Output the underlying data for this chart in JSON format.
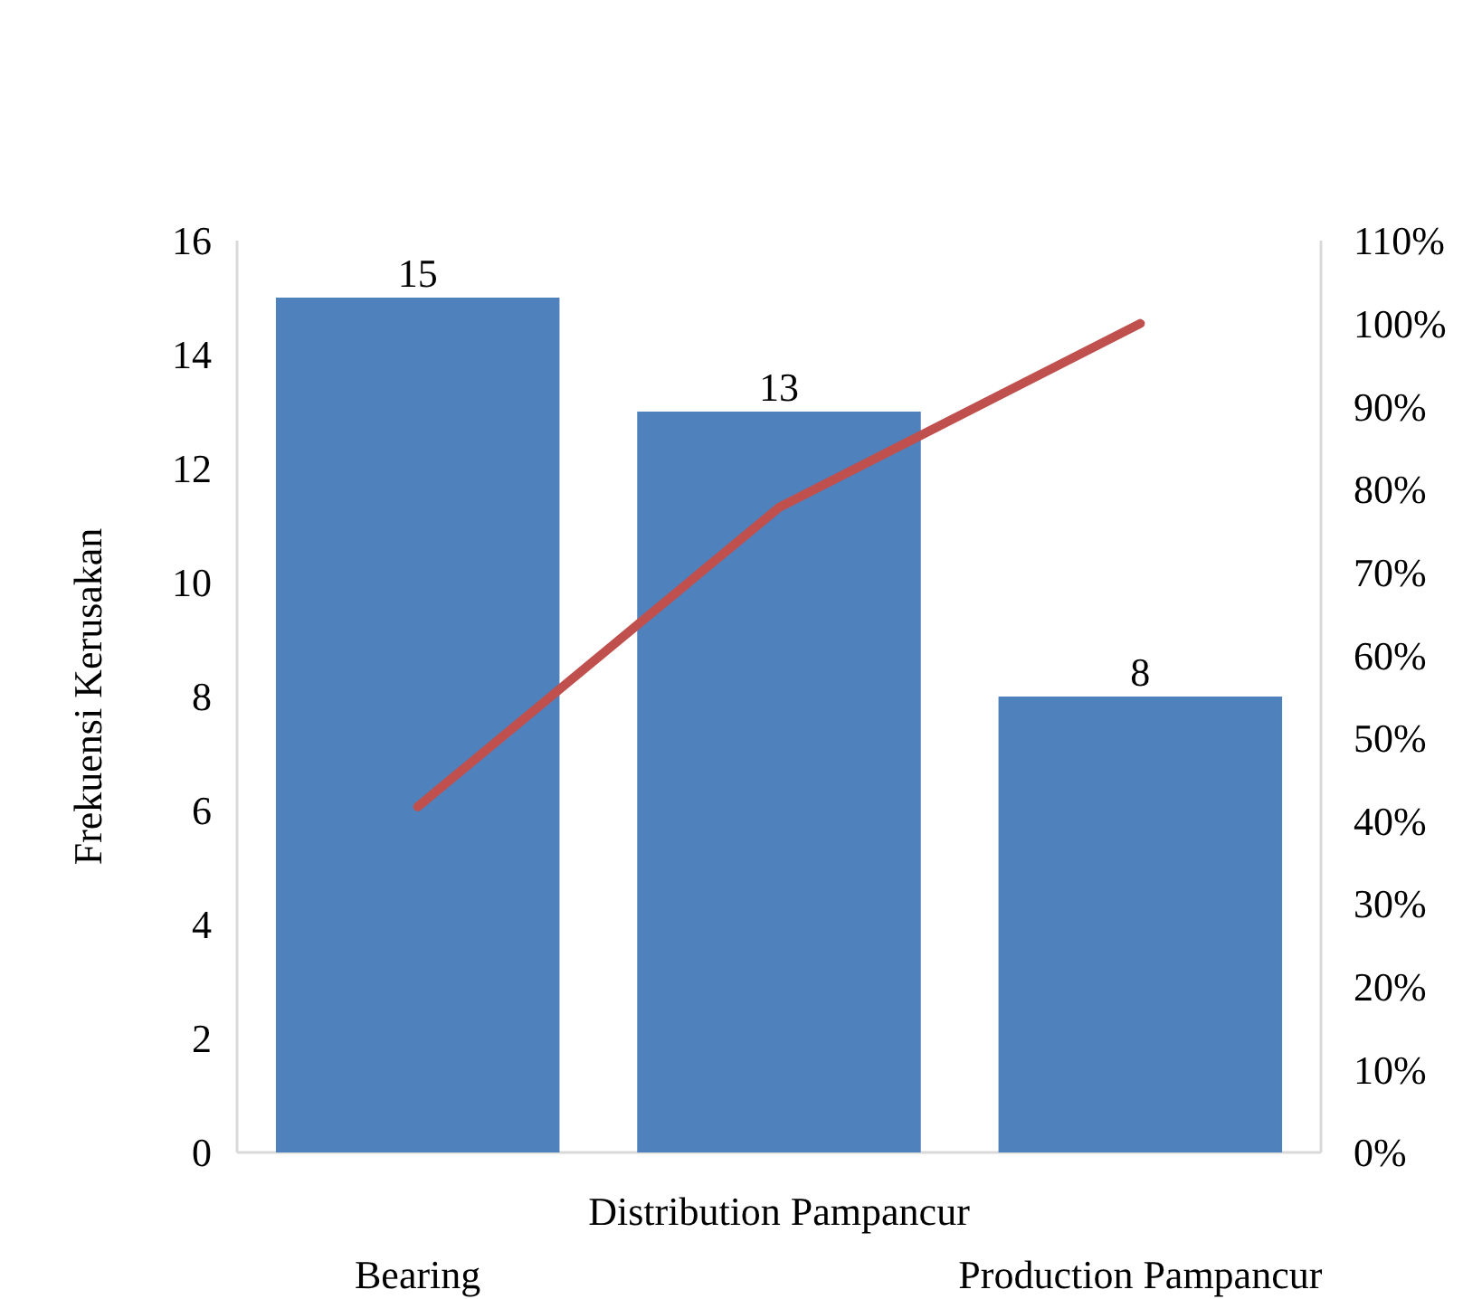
{
  "chart_data": {
    "type": "bar",
    "ylabel": "Frekuensi Kerusakan",
    "categories": [
      "Bearing",
      "Distribution Pampancur",
      "Production Pampancur"
    ],
    "series": [
      {
        "color": "#4f81bd",
        "values": [
          15,
          13,
          8
        ],
        "value_labels": [
          "15",
          "13",
          "8"
        ]
      },
      {
        "type": "line",
        "axis": "y2",
        "color": "#c0504d",
        "values": [
          41.7,
          77.8,
          100
        ]
      }
    ],
    "ylim": [
      0,
      16
    ],
    "yticks": [
      0,
      2,
      4,
      6,
      8,
      10,
      12,
      14,
      16
    ],
    "y2lim": [
      0,
      110
    ],
    "y2ticks": [
      {
        "value": 0,
        "label": "0%"
      },
      {
        "value": 10,
        "label": "10%"
      },
      {
        "value": 20,
        "label": "20%"
      },
      {
        "value": 30,
        "label": "30%"
      },
      {
        "value": 40,
        "label": "40%"
      },
      {
        "value": 50,
        "label": "50%"
      },
      {
        "value": 60,
        "label": "60%"
      },
      {
        "value": 70,
        "label": "70%"
      },
      {
        "value": 80,
        "label": "80%"
      },
      {
        "value": 90,
        "label": "90%"
      },
      {
        "value": 100,
        "label": "100%"
      },
      {
        "value": 110,
        "label": "110%"
      }
    ]
  }
}
